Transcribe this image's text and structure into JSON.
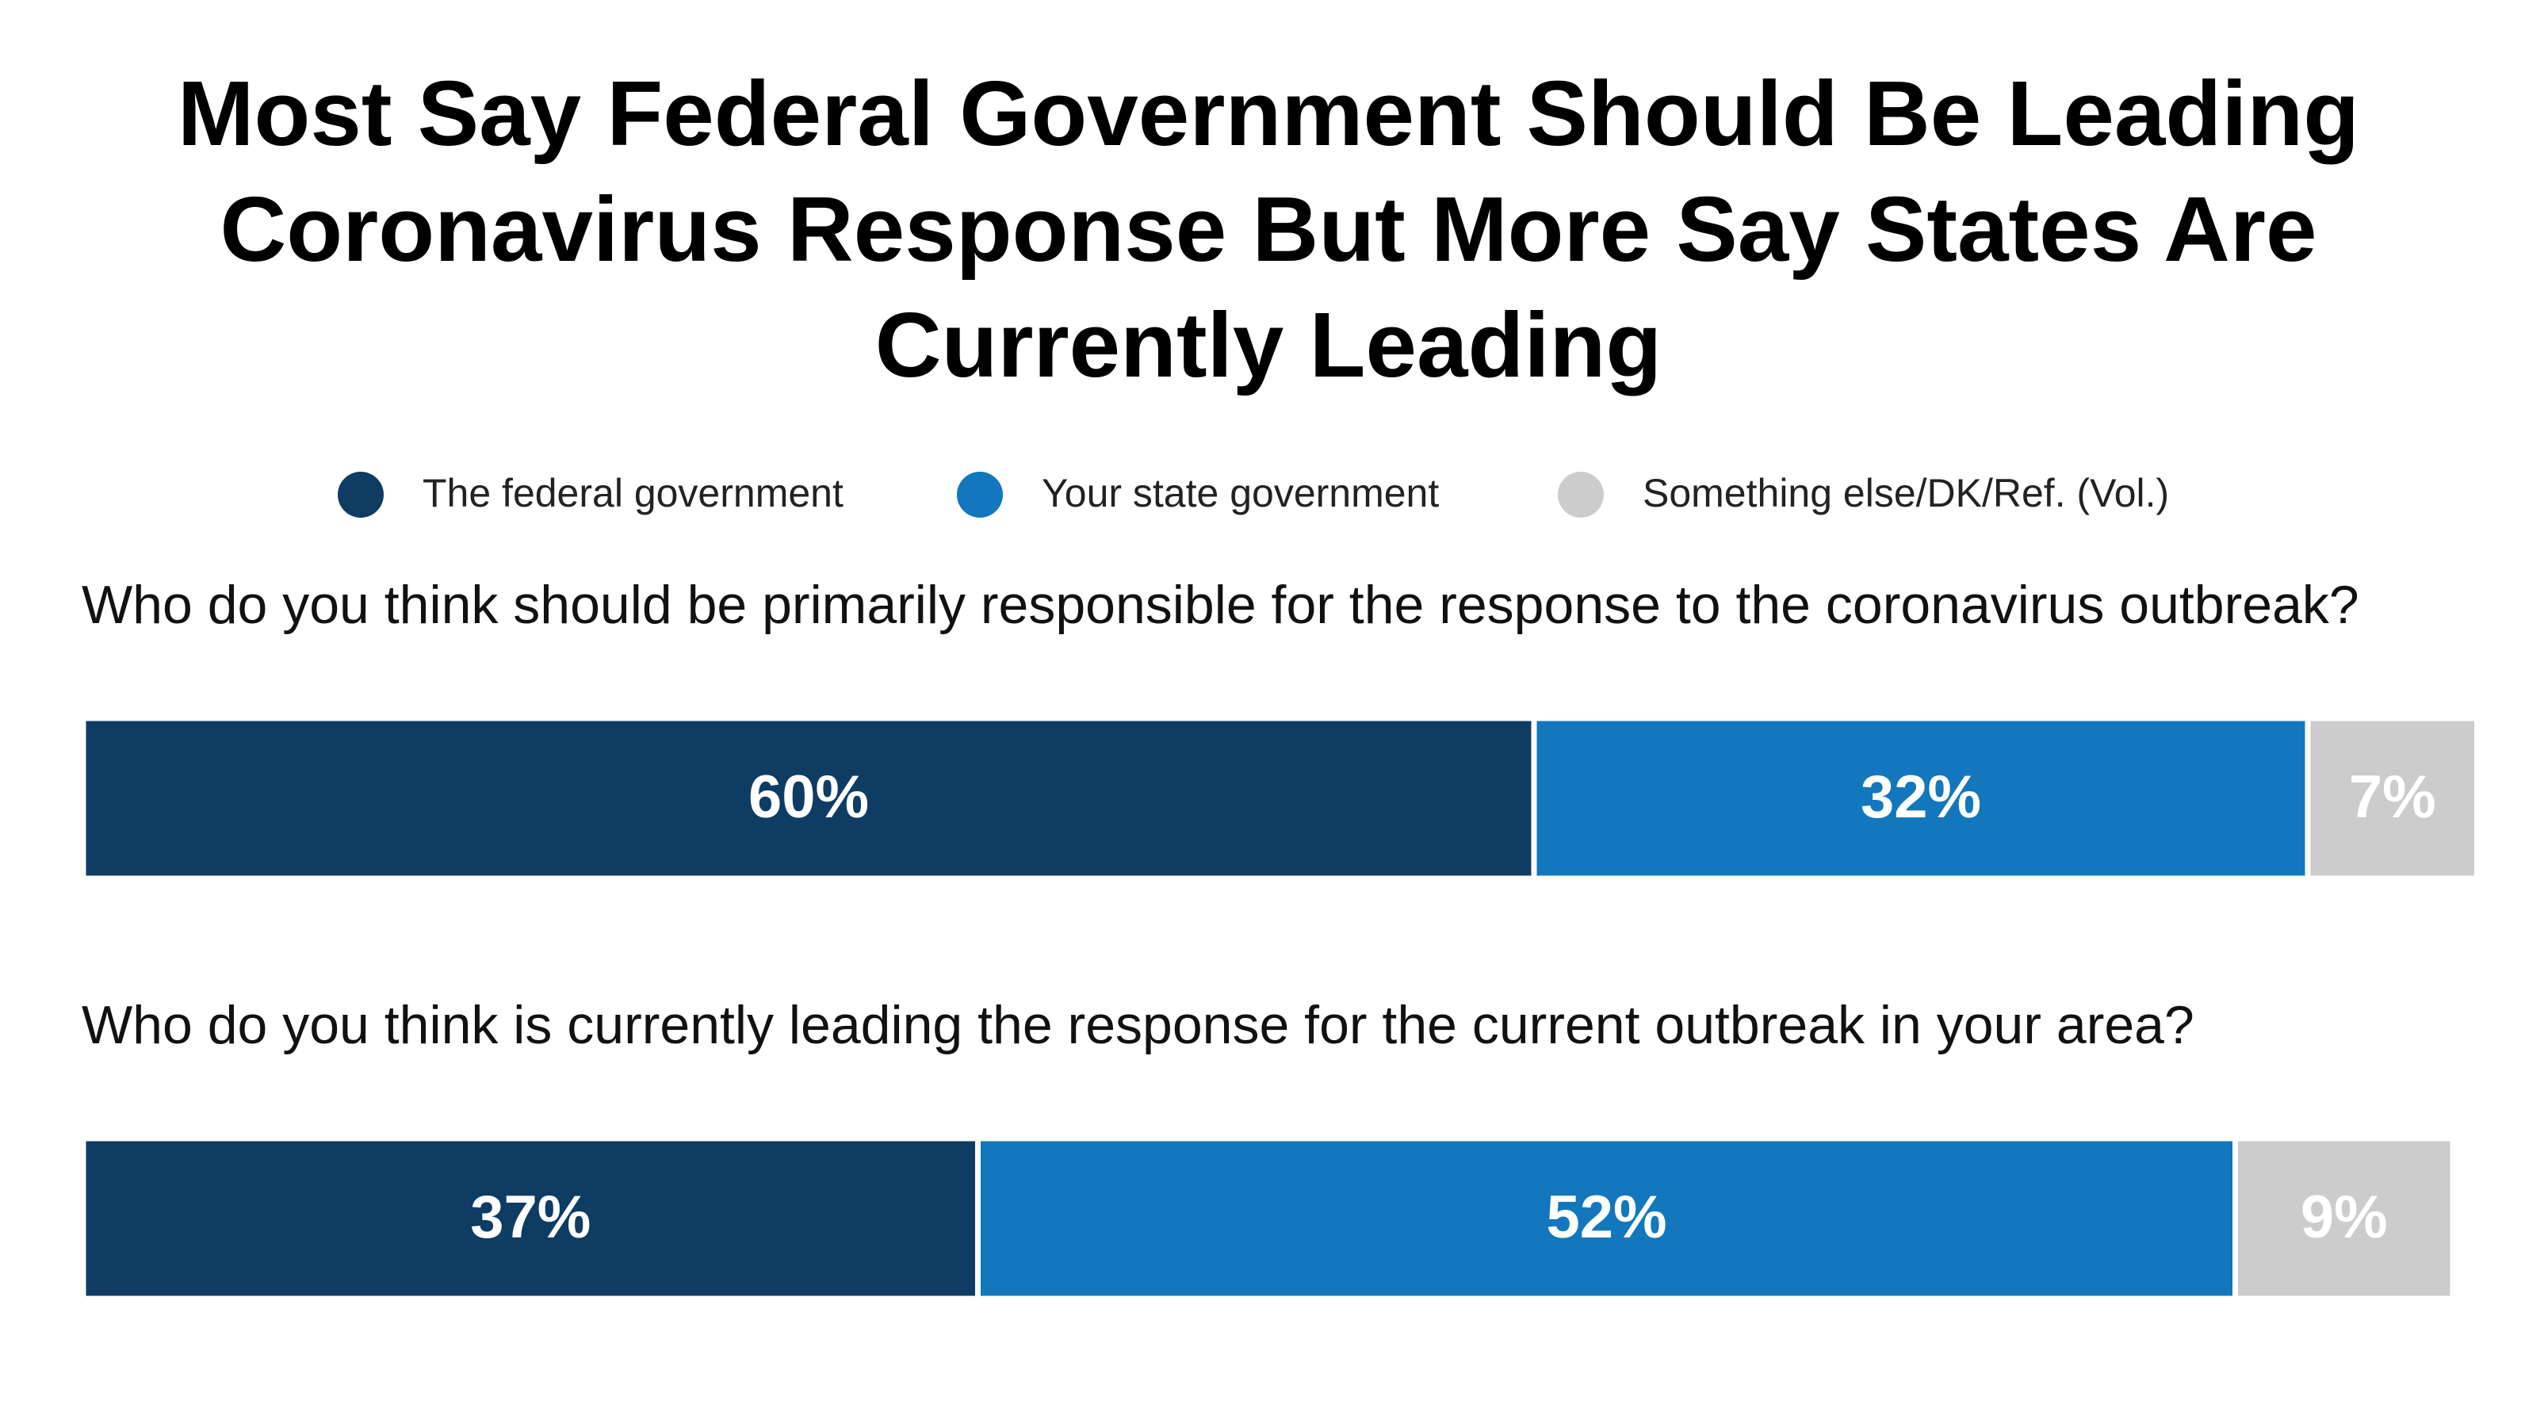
{
  "chart_data": {
    "type": "stacked-bar",
    "title": "Most Say Federal Government Should Be Leading Coronavirus Response But More Say States Are Currently Leading",
    "categories": [
      "Who do you think should be primarily responsible for the response to the coronavirus outbreak?",
      "Who do you think is currently leading the response for the current outbreak in your area?"
    ],
    "xlim": [
      0,
      100
    ],
    "series": [
      {
        "name": "The federal government",
        "color": "#0e3c63",
        "values": [
          60,
          37
        ],
        "value_labels": [
          "60%",
          "37%"
        ]
      },
      {
        "name": "Your state government",
        "color": "#1277bc",
        "values": [
          32,
          52
        ],
        "value_labels": [
          "32%",
          "52%"
        ]
      },
      {
        "name": "Something else/DK/Ref. (Vol.)",
        "color": "#cccccc",
        "values": [
          7,
          9
        ],
        "value_labels": [
          "7%",
          "9%"
        ]
      }
    ]
  }
}
